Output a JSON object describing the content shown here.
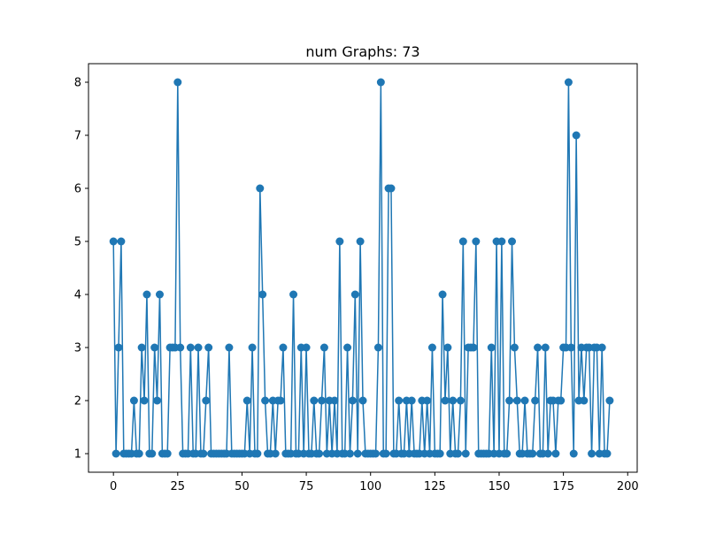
{
  "chart_data": {
    "type": "line",
    "title": "num Graphs: 73",
    "xlabel": "",
    "ylabel": "",
    "xlim": [
      -9.7,
      203.7
    ],
    "ylim": [
      0.65,
      8.35
    ],
    "x_ticks": [
      0,
      25,
      50,
      75,
      100,
      125,
      150,
      175,
      200
    ],
    "y_ticks": [
      1,
      2,
      3,
      4,
      5,
      6,
      7,
      8
    ],
    "grid": false,
    "marker": "circle",
    "color": "#1f77b4",
    "series": [
      {
        "x": [
          0,
          1,
          2,
          3,
          4,
          5,
          6,
          7,
          8,
          9,
          10,
          11,
          12,
          13,
          14,
          15,
          16,
          17,
          18,
          19,
          20,
          21,
          22,
          23,
          24,
          25,
          26,
          27,
          28,
          29,
          30,
          31,
          32,
          33,
          34,
          35,
          36,
          37,
          38,
          39,
          40,
          41,
          42,
          43,
          44,
          45,
          46,
          47,
          48,
          49,
          50,
          51,
          52,
          53,
          54,
          55,
          56,
          57,
          58,
          59,
          60,
          61,
          62,
          63,
          64,
          65,
          66,
          67,
          68,
          69,
          70,
          71,
          72,
          73,
          74,
          75,
          76,
          77,
          78,
          79,
          80,
          81,
          82,
          83,
          84,
          85,
          86,
          87,
          88,
          89,
          90,
          91,
          92,
          93,
          94,
          95,
          96,
          97,
          98,
          99,
          100,
          101,
          102,
          103,
          104,
          105,
          106,
          107,
          108,
          109,
          110,
          111,
          112,
          113,
          114,
          115,
          116,
          117,
          118,
          119,
          120,
          121,
          122,
          123,
          124,
          125,
          126,
          127,
          128,
          129,
          130,
          131,
          132,
          133,
          134,
          135,
          136,
          137,
          138,
          139,
          140,
          141,
          142,
          143,
          144,
          145,
          146,
          147,
          148,
          149,
          150,
          151,
          152,
          153,
          154,
          155,
          156,
          157,
          158,
          159,
          160,
          161,
          162,
          163,
          164,
          165,
          166,
          167,
          168,
          169,
          170,
          171,
          172,
          173,
          174,
          175,
          176,
          177,
          178,
          179,
          180,
          181,
          182,
          183,
          184,
          185,
          186,
          187,
          188,
          189,
          190,
          191,
          192,
          193
        ],
        "values": [
          5,
          1,
          3,
          5,
          1,
          1,
          1,
          1,
          2,
          1,
          1,
          3,
          2,
          4,
          1,
          1,
          3,
          2,
          4,
          1,
          1,
          1,
          3,
          3,
          3,
          8,
          3,
          1,
          1,
          1,
          3,
          1,
          1,
          3,
          1,
          1,
          2,
          3,
          1,
          1,
          1,
          1,
          1,
          1,
          1,
          3,
          1,
          1,
          1,
          1,
          1,
          1,
          2,
          1,
          3,
          1,
          1,
          6,
          4,
          2,
          1,
          1,
          2,
          1,
          2,
          2,
          3,
          1,
          1,
          1,
          4,
          1,
          1,
          3,
          1,
          3,
          1,
          1,
          2,
          1,
          1,
          2,
          3,
          1,
          2,
          1,
          2,
          1,
          5,
          1,
          1,
          3,
          1,
          2,
          4,
          1,
          5,
          2,
          1,
          1,
          1,
          1,
          1,
          3,
          8,
          1,
          1,
          6,
          6,
          1,
          1,
          2,
          1,
          1,
          2,
          1,
          2,
          1,
          1,
          1,
          2,
          1,
          2,
          1,
          3,
          1,
          1,
          1,
          4,
          2,
          3,
          1,
          2,
          1,
          1,
          2,
          5,
          1,
          3,
          3,
          3,
          5,
          1,
          1,
          1,
          1,
          1,
          3,
          1,
          5,
          1,
          5,
          1,
          1,
          2,
          5,
          3,
          2,
          1,
          1,
          2,
          1,
          1,
          1,
          2,
          3,
          1,
          1,
          3,
          1,
          2,
          2,
          1,
          2,
          2,
          3,
          3,
          8,
          3,
          1,
          7,
          2,
          3,
          2,
          3,
          3,
          1,
          3,
          3,
          1,
          3,
          1,
          1,
          2
        ]
      }
    ]
  }
}
